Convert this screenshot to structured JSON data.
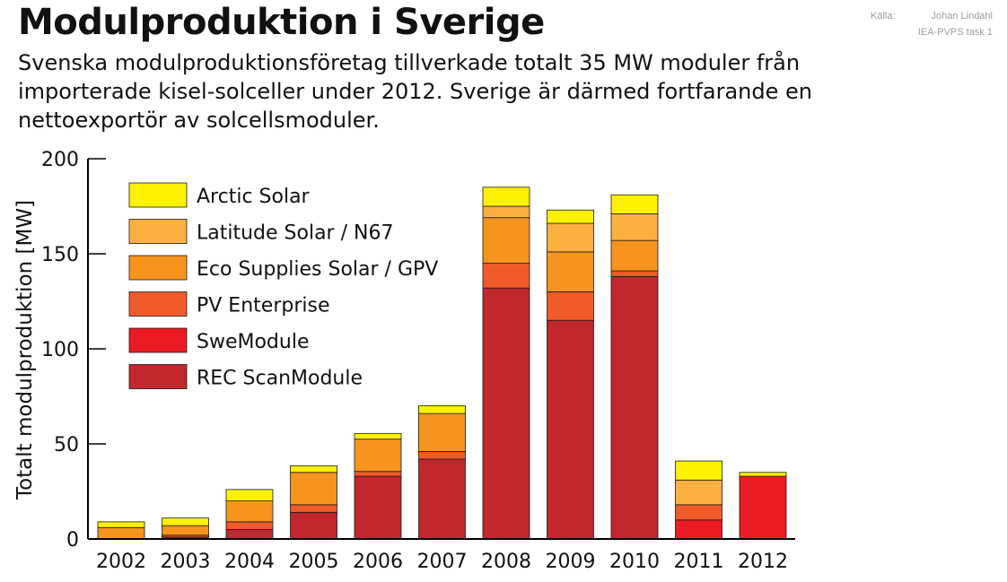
{
  "title": "Modulproduktion i Sverige",
  "subtitle_lines": [
    "Svenska modulproduktionsföretag tillverkade totalt 35 MW moduler från",
    "importerade kisel-solceller under 2012. Sverige är därmed fortfarande en",
    "nettoexportör av solcellsmoduler."
  ],
  "source": {
    "label": "Källa:",
    "lines": [
      "Johan Lindahl",
      "IEA-PVPS task 1"
    ]
  },
  "chart_data": {
    "type": "bar",
    "stacked": true,
    "categories": [
      "2002",
      "2003",
      "2004",
      "2005",
      "2006",
      "2007",
      "2008",
      "2009",
      "2010",
      "2011",
      "2012"
    ],
    "ylabel": "Totalt modulproduktion [MW]",
    "xlabel": "",
    "ylim": [
      0,
      200
    ],
    "yticks": [
      0,
      50,
      100,
      150,
      200
    ],
    "legend_position": "top-left",
    "grid": false,
    "series": [
      {
        "name": "REC ScanModule",
        "color": "#c1272d",
        "values": [
          0,
          1,
          5,
          14,
          33,
          42,
          132,
          115,
          138,
          0,
          0
        ]
      },
      {
        "name": "SweModule",
        "color": "#ed1c24",
        "values": [
          0,
          0,
          0,
          0,
          0,
          0,
          0,
          0,
          0,
          10,
          33
        ]
      },
      {
        "name": "PV Enterprise",
        "color": "#f15a29",
        "values": [
          0,
          1,
          4,
          4,
          2.5,
          4,
          13,
          15,
          3,
          8,
          0
        ]
      },
      {
        "name": "Eco Supplies Solar / GPV",
        "color": "#f7941d",
        "values": [
          6,
          5,
          11,
          17,
          17,
          20,
          24,
          21,
          16,
          0,
          0
        ]
      },
      {
        "name": "Latitude Solar / N67",
        "color": "#fbb040",
        "values": [
          0,
          0,
          0,
          0,
          0,
          0,
          6,
          15,
          14,
          13,
          0
        ]
      },
      {
        "name": "Arctic Solar",
        "color": "#fff200",
        "values": [
          3,
          4,
          6,
          3.5,
          3,
          4,
          10,
          7,
          10,
          10,
          2
        ]
      }
    ]
  }
}
